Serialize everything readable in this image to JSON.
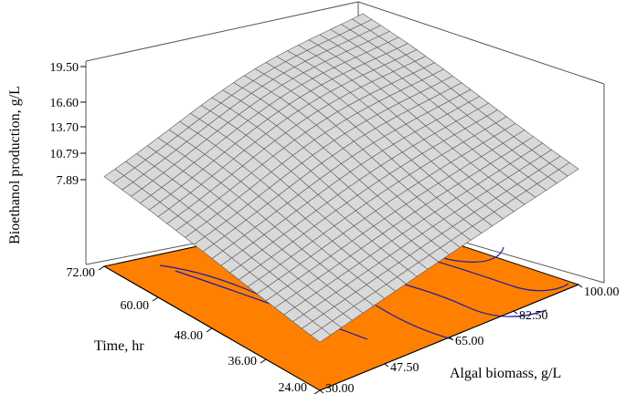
{
  "chart_data": {
    "type": "surface3d",
    "zlabel": "Bioethanol production, g/L",
    "ylabel": "Time, hr",
    "xlabel": "Algal biomass, g/L",
    "z_ticks": [
      "7.89",
      "10.79",
      "13.70",
      "16.60",
      "19.50"
    ],
    "y_ticks": [
      "24.00",
      "36.00",
      "48.00",
      "60.00",
      "72.00"
    ],
    "x_ticks": [
      "30.00",
      "47.50",
      "65.00",
      "82.50",
      "100.00"
    ],
    "zlim": [
      7.89,
      19.5
    ],
    "ylim": [
      24,
      72
    ],
    "xlim": [
      30,
      100
    ],
    "surface_corners": [
      {
        "algal_biomass": 30,
        "time": 24,
        "bioethanol": 6.8
      },
      {
        "algal_biomass": 100,
        "time": 24,
        "bioethanol": 13.7
      },
      {
        "algal_biomass": 30,
        "time": 72,
        "bioethanol": 10.8
      },
      {
        "algal_biomass": 100,
        "time": 72,
        "bioethanol": 16.3
      }
    ],
    "surface_peak": {
      "algal_biomass": 70,
      "time": 62,
      "bioethanol": 19.5
    },
    "colors": {
      "surface_fill": "#d9d9d9",
      "surface_grid": "#5a5a5a",
      "floor": "#ff8000",
      "contours": "#1a1aa8"
    }
  }
}
